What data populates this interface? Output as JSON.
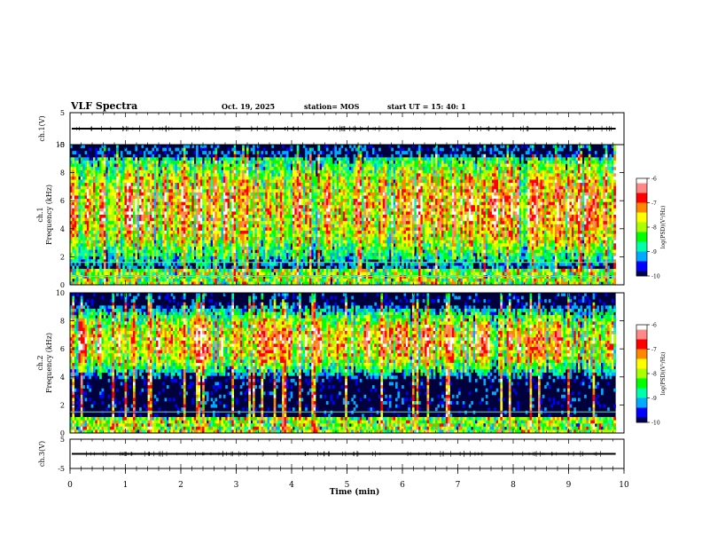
{
  "header": {
    "title": "VLF Spectra",
    "date": "Oct. 19, 2025",
    "station": "station= MOS",
    "start_ut": "start  UT =   15: 40: 1"
  },
  "chart_data": {
    "type": "spectrogram",
    "xlabel": "Time  (min)",
    "x_ticks": [
      "0",
      "1",
      "2",
      "3",
      "4",
      "5",
      "6",
      "7",
      "8",
      "9",
      "10"
    ],
    "xlim": [
      0,
      10
    ],
    "data_end_min": 9.85,
    "panels": [
      {
        "id": "ch1-waveform",
        "type": "line",
        "ylabel": "ch.1(V)",
        "ylim": [
          -5,
          5
        ],
        "y_ticks": [
          "5",
          "-5"
        ],
        "baseline_value": 0
      },
      {
        "id": "ch1-spectrogram",
        "type": "heatmap",
        "ylabel": "ch.1",
        "ylabel2": "Frequency  (kHz)",
        "ylim": [
          0,
          10
        ],
        "y_ticks": [
          "0",
          "2",
          "4",
          "6",
          "8",
          "10"
        ],
        "dominant_band_khz": [
          2,
          9
        ],
        "narrowband_lines_khz": [
          1.6,
          0.6
        ]
      },
      {
        "id": "ch2-spectrogram",
        "type": "heatmap",
        "ylabel": "ch.2",
        "ylabel2": "Frequency  (kHz)",
        "ylim": [
          0,
          10
        ],
        "y_ticks": [
          "0",
          "2",
          "4",
          "6",
          "8",
          "10"
        ],
        "dominant_band_khz": [
          5,
          8
        ],
        "narrowband_lines_khz": [
          1.5
        ]
      },
      {
        "id": "ch3-waveform",
        "type": "line",
        "ylabel": "ch.3(V)",
        "ylim": [
          -5,
          5
        ],
        "y_ticks": [
          "5",
          "-5"
        ],
        "baseline_value": 0
      }
    ],
    "colorbar": {
      "label": "log(PSD)(V²/Hz)",
      "range": [
        -10,
        -6
      ],
      "ticks": [
        "-6",
        "-7",
        "-8",
        "-9",
        "-10"
      ],
      "colors": [
        "#000050",
        "#0000ff",
        "#00aaff",
        "#00ffaa",
        "#00ff00",
        "#aaff00",
        "#ffff00",
        "#ff8800",
        "#ff0000",
        "#ff8888",
        "#ffffff"
      ]
    }
  }
}
